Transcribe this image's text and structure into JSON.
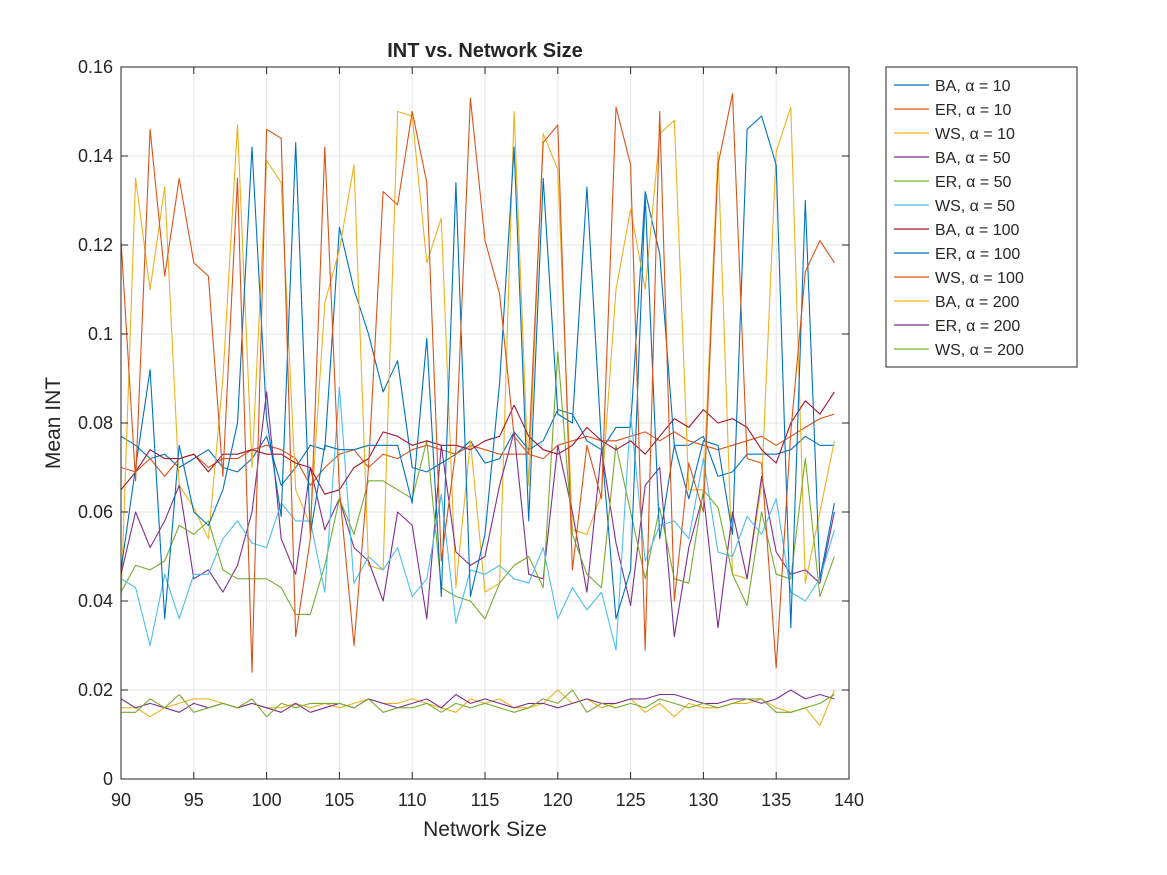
{
  "chart_data": {
    "type": "line",
    "title": "INT vs. Network Size",
    "xlabel": "Network Size",
    "ylabel": "Mean INT",
    "xlim": [
      90,
      140
    ],
    "ylim": [
      0,
      0.16
    ],
    "xticks": [
      90,
      95,
      100,
      105,
      110,
      115,
      120,
      125,
      130,
      135,
      140
    ],
    "yticks": [
      0,
      0.02,
      0.04,
      0.06,
      0.08,
      0.1,
      0.12,
      0.14,
      0.16
    ],
    "xtick_labels": [
      "90",
      "95",
      "100",
      "105",
      "110",
      "115",
      "120",
      "125",
      "130",
      "135",
      "140"
    ],
    "ytick_labels": [
      "0",
      "0.02",
      "0.04",
      "0.06",
      "0.08",
      "0.1",
      "0.12",
      "0.14",
      "0.16"
    ],
    "grid": true,
    "legend_position": "outside-top-right",
    "x": [
      90,
      91,
      92,
      93,
      94,
      95,
      96,
      97,
      98,
      99,
      100,
      101,
      102,
      103,
      104,
      105,
      106,
      107,
      108,
      109,
      110,
      111,
      112,
      113,
      114,
      115,
      116,
      117,
      118,
      119,
      120,
      121,
      122,
      123,
      124,
      125,
      126,
      127,
      128,
      129,
      130,
      131,
      132,
      133,
      134,
      135,
      136,
      137,
      138,
      139
    ],
    "series": [
      {
        "name": "BA, α = 10",
        "color": "#0072BD",
        "values": [
          0.077,
          0.075,
          0.072,
          0.073,
          0.07,
          0.072,
          0.074,
          0.07,
          0.069,
          0.072,
          0.077,
          0.066,
          0.07,
          0.075,
          0.074,
          0.124,
          0.11,
          0.1,
          0.087,
          0.094,
          0.07,
          0.069,
          0.071,
          0.073,
          0.076,
          0.071,
          0.072,
          0.078,
          0.074,
          0.076,
          0.083,
          0.082,
          0.076,
          0.074,
          0.079,
          0.079,
          0.132,
          0.118,
          0.075,
          0.075,
          0.077,
          0.068,
          0.069,
          0.073,
          0.073,
          0.073,
          0.074,
          0.077,
          0.075,
          0.075
        ]
      },
      {
        "name": "ER, α = 10",
        "color": "#D95319",
        "values": [
          0.07,
          0.069,
          0.072,
          0.068,
          0.072,
          0.073,
          0.07,
          0.072,
          0.072,
          0.074,
          0.075,
          0.074,
          0.072,
          0.066,
          0.07,
          0.073,
          0.074,
          0.07,
          0.073,
          0.072,
          0.074,
          0.075,
          0.074,
          0.073,
          0.075,
          0.074,
          0.073,
          0.073,
          0.073,
          0.072,
          0.075,
          0.076,
          0.077,
          0.076,
          0.076,
          0.077,
          0.078,
          0.076,
          0.078,
          0.076,
          0.075,
          0.074,
          0.075,
          0.076,
          0.077,
          0.075,
          0.077,
          0.079,
          0.081,
          0.082
        ]
      },
      {
        "name": "WS, α = 10",
        "color": "#EDB120",
        "values": [
          0.04,
          0.135,
          0.11,
          0.133,
          0.066,
          0.061,
          0.054,
          0.09,
          0.147,
          0.07,
          0.139,
          0.134,
          0.065,
          0.057,
          0.107,
          0.119,
          0.138,
          0.048,
          0.047,
          0.15,
          0.149,
          0.116,
          0.126,
          0.043,
          0.076,
          0.042,
          0.044,
          0.15,
          0.066,
          0.145,
          0.137,
          0.056,
          0.055,
          0.064,
          0.11,
          0.128,
          0.11,
          0.145,
          0.148,
          0.065,
          0.065,
          0.141,
          0.046,
          0.045,
          0.066,
          0.141,
          0.151,
          0.044,
          0.06,
          0.076
        ]
      },
      {
        "name": "BA, α = 50",
        "color": "#7E2F8E",
        "values": [
          0.046,
          0.06,
          0.052,
          0.058,
          0.066,
          0.045,
          0.047,
          0.042,
          0.048,
          0.06,
          0.087,
          0.054,
          0.046,
          0.07,
          0.056,
          0.063,
          0.052,
          0.049,
          0.04,
          0.06,
          0.057,
          0.036,
          0.075,
          0.051,
          0.048,
          0.05,
          0.066,
          0.078,
          0.046,
          0.045,
          0.075,
          0.06,
          0.042,
          0.074,
          0.053,
          0.039,
          0.066,
          0.07,
          0.032,
          0.052,
          0.064,
          0.034,
          0.06,
          0.045,
          0.068,
          0.051,
          0.046,
          0.047,
          0.044,
          0.06
        ]
      },
      {
        "name": "ER, α = 50",
        "color": "#77AC30",
        "values": [
          0.042,
          0.048,
          0.047,
          0.049,
          0.057,
          0.055,
          0.058,
          0.047,
          0.045,
          0.045,
          0.045,
          0.043,
          0.037,
          0.037,
          0.048,
          0.063,
          0.055,
          0.067,
          0.067,
          0.065,
          0.063,
          0.076,
          0.043,
          0.041,
          0.04,
          0.036,
          0.044,
          0.048,
          0.05,
          0.043,
          0.096,
          0.055,
          0.046,
          0.043,
          0.075,
          0.06,
          0.045,
          0.061,
          0.045,
          0.044,
          0.065,
          0.061,
          0.046,
          0.039,
          0.06,
          0.046,
          0.045,
          0.072,
          0.041,
          0.05
        ]
      },
      {
        "name": "WS, α = 50",
        "color": "#4DBEEE",
        "values": [
          0.045,
          0.043,
          0.03,
          0.046,
          0.036,
          0.046,
          0.046,
          0.054,
          0.058,
          0.053,
          0.052,
          0.062,
          0.058,
          0.058,
          0.042,
          0.088,
          0.044,
          0.05,
          0.047,
          0.052,
          0.041,
          0.045,
          0.064,
          0.035,
          0.047,
          0.046,
          0.048,
          0.045,
          0.044,
          0.052,
          0.036,
          0.043,
          0.038,
          0.042,
          0.029,
          0.082,
          0.049,
          0.057,
          0.058,
          0.054,
          0.072,
          0.051,
          0.05,
          0.059,
          0.055,
          0.063,
          0.042,
          0.04,
          0.045,
          0.056
        ]
      },
      {
        "name": "BA, α = 100",
        "color": "#A2142F",
        "values": [
          0.065,
          0.069,
          0.074,
          0.072,
          0.072,
          0.073,
          0.069,
          0.073,
          0.073,
          0.074,
          0.073,
          0.073,
          0.071,
          0.07,
          0.064,
          0.065,
          0.07,
          0.072,
          0.078,
          0.077,
          0.075,
          0.076,
          0.075,
          0.075,
          0.074,
          0.076,
          0.077,
          0.084,
          0.077,
          0.074,
          0.073,
          0.075,
          0.079,
          0.076,
          0.074,
          0.076,
          0.073,
          0.077,
          0.081,
          0.079,
          0.083,
          0.08,
          0.081,
          0.079,
          0.074,
          0.071,
          0.08,
          0.085,
          0.082,
          0.087
        ]
      },
      {
        "name": "ER, α = 100",
        "color": "#0072BD",
        "values": [
          0.047,
          0.07,
          0.092,
          0.036,
          0.075,
          0.06,
          0.057,
          0.065,
          0.08,
          0.142,
          0.081,
          0.059,
          0.143,
          0.055,
          0.075,
          0.074,
          0.074,
          0.075,
          0.075,
          0.075,
          0.062,
          0.099,
          0.041,
          0.134,
          0.041,
          0.055,
          0.089,
          0.142,
          0.058,
          0.135,
          0.082,
          0.08,
          0.133,
          0.075,
          0.036,
          0.047,
          0.131,
          0.054,
          0.075,
          0.063,
          0.076,
          0.075,
          0.055,
          0.146,
          0.149,
          0.138,
          0.034,
          0.13,
          0.045,
          0.062
        ]
      },
      {
        "name": "WS, α = 100",
        "color": "#D95319",
        "values": [
          0.121,
          0.067,
          0.146,
          0.113,
          0.135,
          0.116,
          0.113,
          0.068,
          0.135,
          0.024,
          0.146,
          0.144,
          0.032,
          0.054,
          0.142,
          0.065,
          0.03,
          0.07,
          0.132,
          0.129,
          0.15,
          0.134,
          0.049,
          0.074,
          0.153,
          0.121,
          0.109,
          0.077,
          0.073,
          0.143,
          0.147,
          0.047,
          0.075,
          0.063,
          0.151,
          0.138,
          0.029,
          0.15,
          0.04,
          0.071,
          0.06,
          0.138,
          0.154,
          0.072,
          0.071,
          0.025,
          0.078,
          0.114,
          0.121,
          0.116
        ]
      },
      {
        "name": "BA, α = 200",
        "color": "#EDB120",
        "values": [
          0.016,
          0.016,
          0.014,
          0.016,
          0.017,
          0.018,
          0.018,
          0.017,
          0.016,
          0.017,
          0.016,
          0.016,
          0.017,
          0.016,
          0.017,
          0.016,
          0.017,
          0.018,
          0.017,
          0.017,
          0.018,
          0.017,
          0.016,
          0.015,
          0.018,
          0.017,
          0.018,
          0.016,
          0.016,
          0.017,
          0.02,
          0.017,
          0.018,
          0.016,
          0.017,
          0.018,
          0.015,
          0.017,
          0.014,
          0.017,
          0.016,
          0.016,
          0.017,
          0.017,
          0.018,
          0.016,
          0.015,
          0.016,
          0.012,
          0.02
        ]
      },
      {
        "name": "ER, α = 200",
        "color": "#7E2F8E",
        "values": [
          0.018,
          0.016,
          0.017,
          0.016,
          0.015,
          0.017,
          0.016,
          0.017,
          0.016,
          0.017,
          0.016,
          0.015,
          0.017,
          0.015,
          0.016,
          0.017,
          0.016,
          0.018,
          0.017,
          0.016,
          0.017,
          0.018,
          0.016,
          0.019,
          0.017,
          0.018,
          0.017,
          0.016,
          0.017,
          0.017,
          0.016,
          0.017,
          0.018,
          0.017,
          0.017,
          0.018,
          0.018,
          0.019,
          0.019,
          0.018,
          0.017,
          0.017,
          0.018,
          0.018,
          0.017,
          0.018,
          0.02,
          0.018,
          0.019,
          0.018
        ]
      },
      {
        "name": "WS, α = 200",
        "color": "#77AC30",
        "values": [
          0.015,
          0.015,
          0.018,
          0.016,
          0.019,
          0.015,
          0.016,
          0.017,
          0.016,
          0.018,
          0.014,
          0.017,
          0.016,
          0.017,
          0.017,
          0.017,
          0.016,
          0.018,
          0.015,
          0.016,
          0.016,
          0.017,
          0.015,
          0.017,
          0.016,
          0.017,
          0.016,
          0.015,
          0.016,
          0.018,
          0.017,
          0.02,
          0.015,
          0.017,
          0.016,
          0.017,
          0.016,
          0.018,
          0.017,
          0.016,
          0.017,
          0.016,
          0.017,
          0.018,
          0.018,
          0.015,
          0.015,
          0.016,
          0.017,
          0.019
        ]
      }
    ]
  }
}
